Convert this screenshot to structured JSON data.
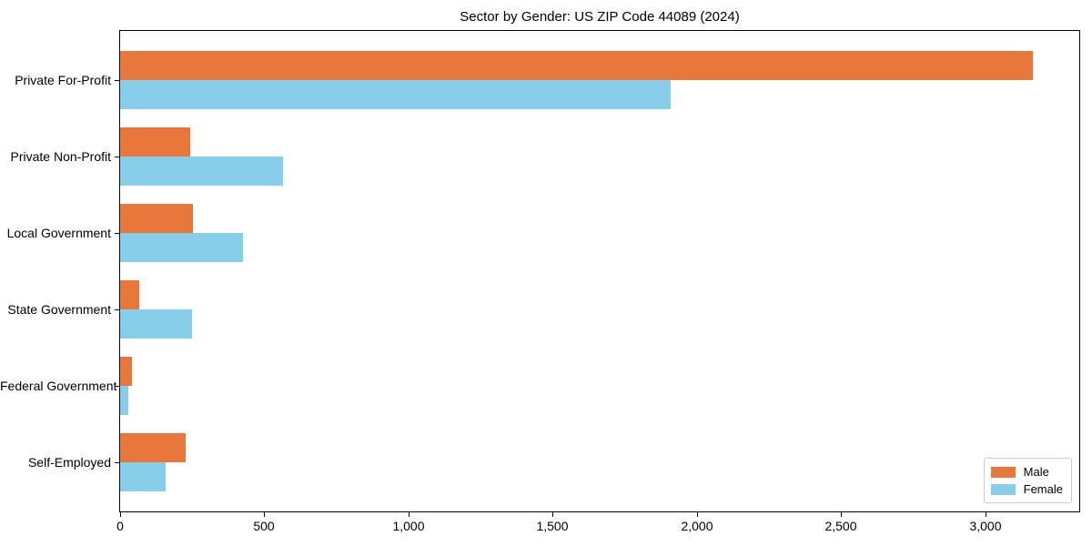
{
  "chart_data": {
    "type": "bar",
    "orientation": "horizontal",
    "title": "Sector by Gender: US ZIP Code 44089 (2024)",
    "categories": [
      "Private For-Profit",
      "Private Non-Profit",
      "Local Government",
      "State Government",
      "Federal Government",
      "Self-Employed"
    ],
    "series": [
      {
        "name": "Male",
        "color": "#E8773B",
        "values": [
          3165,
          243,
          252,
          65,
          41,
          227
        ]
      },
      {
        "name": "Female",
        "color": "#87CEEB",
        "values": [
          1910,
          564,
          425,
          250,
          28,
          158
        ]
      }
    ],
    "xlabel": "",
    "ylabel": "",
    "xlim": [
      0,
      3325
    ],
    "xticks": [
      0,
      500,
      1000,
      1500,
      2000,
      2500,
      3000
    ],
    "xtick_labels": [
      "0",
      "500",
      "1,000",
      "1,500",
      "2,000",
      "2,500",
      "3,000"
    ],
    "grid": false,
    "legend_position": "lower right",
    "colors": {
      "axis": "#000000",
      "legend_border": "#cccccc",
      "background": "#ffffff"
    }
  }
}
